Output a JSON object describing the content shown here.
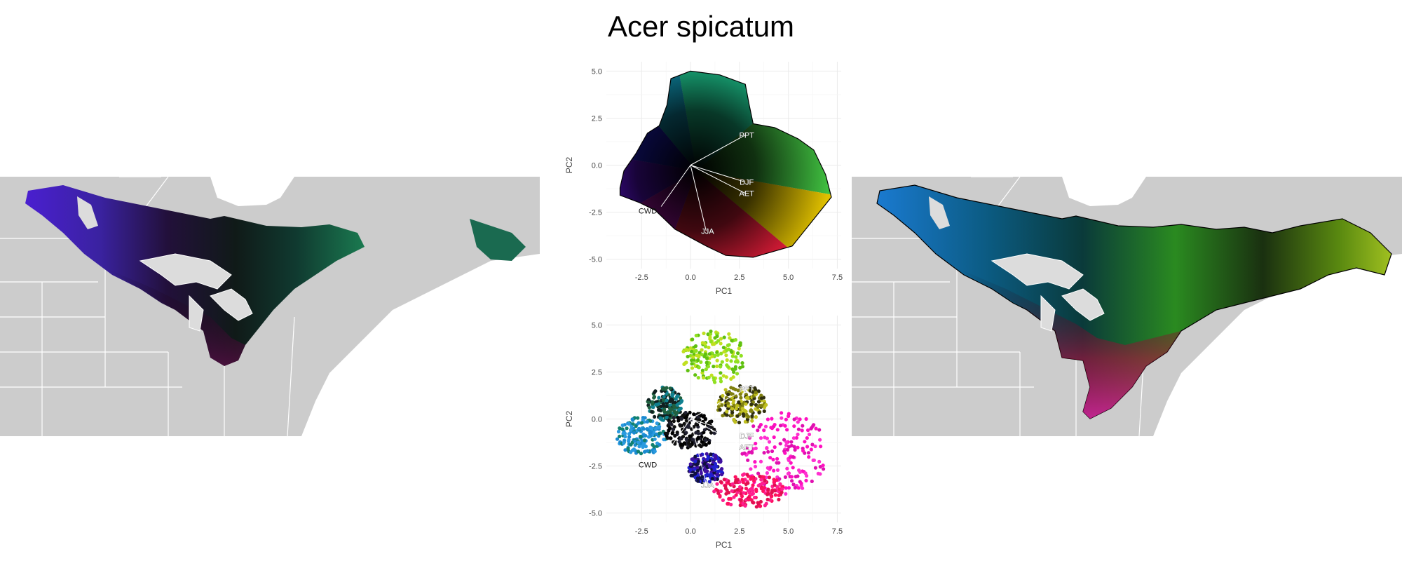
{
  "figure": {
    "title": "Acer spicatum"
  },
  "chart_data": [
    {
      "type": "scatter",
      "panel": "pca-range-envelope",
      "xlabel": "PC1",
      "ylabel": "PC2",
      "xticks": [
        -2.5,
        0.0,
        2.5,
        5.0,
        7.5
      ],
      "yticks": [
        -5.0,
        -2.5,
        0.0,
        2.5,
        5.0
      ],
      "xlim": [
        -4.3,
        7.7
      ],
      "ylim": [
        -5.5,
        5.5
      ],
      "grid": true,
      "vector_origin": [
        0.0,
        0.0
      ],
      "vectors": [
        {
          "label": "PPT",
          "x": 2.8,
          "y": 1.6
        },
        {
          "label": "DJF",
          "x": 2.8,
          "y": -0.9
        },
        {
          "label": "AET",
          "x": 2.8,
          "y": -1.5
        },
        {
          "label": "CWD",
          "x": -1.5,
          "y": -2.2
        },
        {
          "label": "JJA",
          "x": 0.8,
          "y": -3.5
        }
      ]
    },
    {
      "type": "scatter",
      "panel": "pca-occurrence-points",
      "xlabel": "PC1",
      "ylabel": "PC2",
      "xticks": [
        -2.5,
        0.0,
        2.5,
        5.0,
        7.5
      ],
      "yticks": [
        -5.0,
        -2.5,
        0.0,
        2.5,
        5.0
      ],
      "xlim": [
        -4.3,
        7.7
      ],
      "ylim": [
        -5.5,
        5.5
      ],
      "grid": true,
      "vector_origin": [
        0.0,
        0.0
      ],
      "vectors": [
        {
          "label": "PPT",
          "x": 2.8,
          "y": 1.6
        },
        {
          "label": "DJF",
          "x": 2.8,
          "y": -0.9
        },
        {
          "label": "AET",
          "x": 2.8,
          "y": -1.5
        },
        {
          "label": "CWD",
          "x": -1.5,
          "y": -2.2
        },
        {
          "label": "JJA",
          "x": 0.8,
          "y": -3.5
        }
      ]
    }
  ],
  "colors": {
    "land": "#cccccc",
    "borders": "#ffffff",
    "grid": "#ebebeb",
    "outline": "#000000"
  }
}
